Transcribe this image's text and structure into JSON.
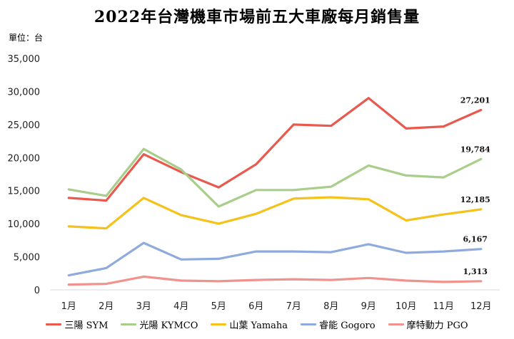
{
  "unit_label": "單位：台",
  "chart_data": {
    "type": "line",
    "title": "2022年台灣機車市場前五大車廠每月銷售量",
    "xlabel": "",
    "ylabel": "",
    "categories": [
      "1月",
      "2月",
      "3月",
      "4月",
      "5月",
      "6月",
      "7月",
      "8月",
      "9月",
      "10月",
      "11月",
      "12月"
    ],
    "ylim": [
      0,
      35000
    ],
    "yticks": [
      0,
      5000,
      10000,
      15000,
      20000,
      25000,
      30000,
      35000
    ],
    "ytick_labels": [
      "0",
      "5,000",
      "10,000",
      "15,000",
      "20,000",
      "25,000",
      "30,000",
      "35,000"
    ],
    "grid": false,
    "legend_position": "bottom",
    "series": [
      {
        "name": "三陽 SYM",
        "color": "#e8594f",
        "values": [
          13900,
          13500,
          20500,
          17800,
          15500,
          19000,
          25000,
          24800,
          29000,
          24400,
          24700,
          27201
        ],
        "end_label": "27,201"
      },
      {
        "name": "光陽 KYMCO",
        "color": "#a9cd8b",
        "values": [
          15200,
          14200,
          21300,
          18200,
          12600,
          15100,
          15100,
          15600,
          18800,
          17300,
          17000,
          19784
        ],
        "end_label": "19,784"
      },
      {
        "name": "山葉 Yamaha",
        "color": "#f4c21a",
        "values": [
          9600,
          9300,
          13900,
          11300,
          10000,
          11500,
          13800,
          14000,
          13700,
          10500,
          11400,
          12185
        ],
        "end_label": "12,185"
      },
      {
        "name": "睿能 Gogoro",
        "color": "#8faadc",
        "values": [
          2200,
          3300,
          7100,
          4600,
          4700,
          5800,
          5800,
          5700,
          6900,
          5600,
          5800,
          6167
        ],
        "end_label": "6,167"
      },
      {
        "name": "摩特動力 PGO",
        "color": "#f0928e",
        "values": [
          800,
          900,
          2000,
          1400,
          1300,
          1500,
          1600,
          1500,
          1800,
          1400,
          1200,
          1313
        ],
        "end_label": "1,313"
      }
    ]
  }
}
